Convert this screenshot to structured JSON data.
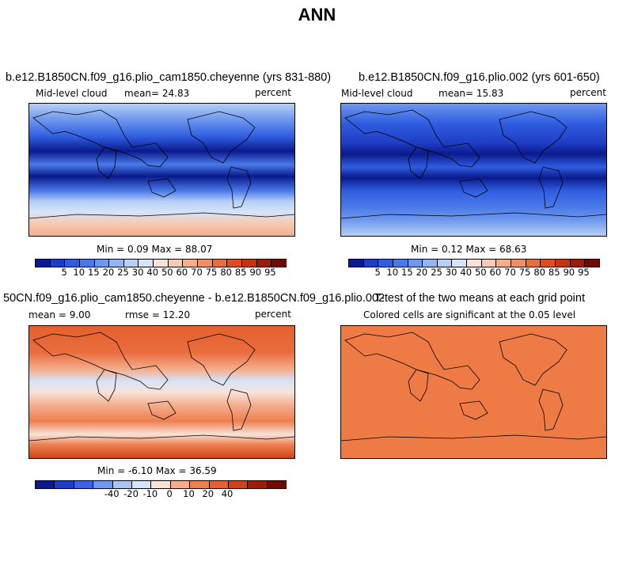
{
  "title": "ANN",
  "panels": {
    "top_left": {
      "title": "b.e12.B1850CN.f09_g16.plio_cam1850.cheyenne (yrs 831-880)",
      "variable": "Mid-level cloud",
      "stat": "mean=  24.83",
      "units": "percent",
      "minmax": "Min =   0.09 Max =  88.07"
    },
    "top_right": {
      "title": "b.e12.B1850CN.f09_g16.plio.002 (yrs 601-650)",
      "variable": "Mid-level cloud",
      "stat": "mean=  15.83",
      "units": "percent",
      "minmax": "Min =   0.12 Max =  68.63"
    },
    "bottom_left": {
      "title": "50CN.f09_g16.plio_cam1850.cheyenne - b.e12.B1850CN.f09_g16.plio.002",
      "stat": "mean =   9.00",
      "rmse": "rmse =  12.20",
      "units": "percent",
      "minmax": "Min =  -6.10 Max =  36.59"
    },
    "bottom_right": {
      "title": "T-test of the two means at each grid point",
      "subtitle": "Colored cells are significant at the 0.05 level"
    }
  },
  "colorbars": {
    "field": {
      "colors": [
        "#0a1a8c",
        "#1f3cc4",
        "#2f5de0",
        "#4a79e8",
        "#6e98ee",
        "#93b5f2",
        "#b7cff6",
        "#d6e4fa",
        "#f7e3d8",
        "#f7cbb6",
        "#f4ae8e",
        "#f08f66",
        "#ea6d3e",
        "#dc4e22",
        "#c23413",
        "#9c1c0a",
        "#6e0b05"
      ],
      "labels": [
        "5",
        "10",
        "15",
        "20",
        "25",
        "30",
        "40",
        "50",
        "60",
        "70",
        "75",
        "80",
        "85",
        "90",
        "95"
      ]
    },
    "diff": {
      "colors": [
        "#0a1a8c",
        "#1f3cc4",
        "#3a64e2",
        "#6e98ee",
        "#a8c6f4",
        "#d6e4fa",
        "#f7e3d8",
        "#f4ae8e",
        "#ee7f4f",
        "#e4602e",
        "#cf4318",
        "#9c1c0a",
        "#6e0b05"
      ],
      "labels": [
        "-40",
        "-20",
        "-10",
        "0",
        "10",
        "20",
        "40"
      ]
    }
  },
  "colors": {
    "ocean_dark": "#1c3fc0",
    "ocean_mid": "#3d6ce0",
    "ocean_light": "#a9c6f3",
    "diff_fill": "#ea6d3e",
    "ttest_fill": "#ee7a45"
  }
}
